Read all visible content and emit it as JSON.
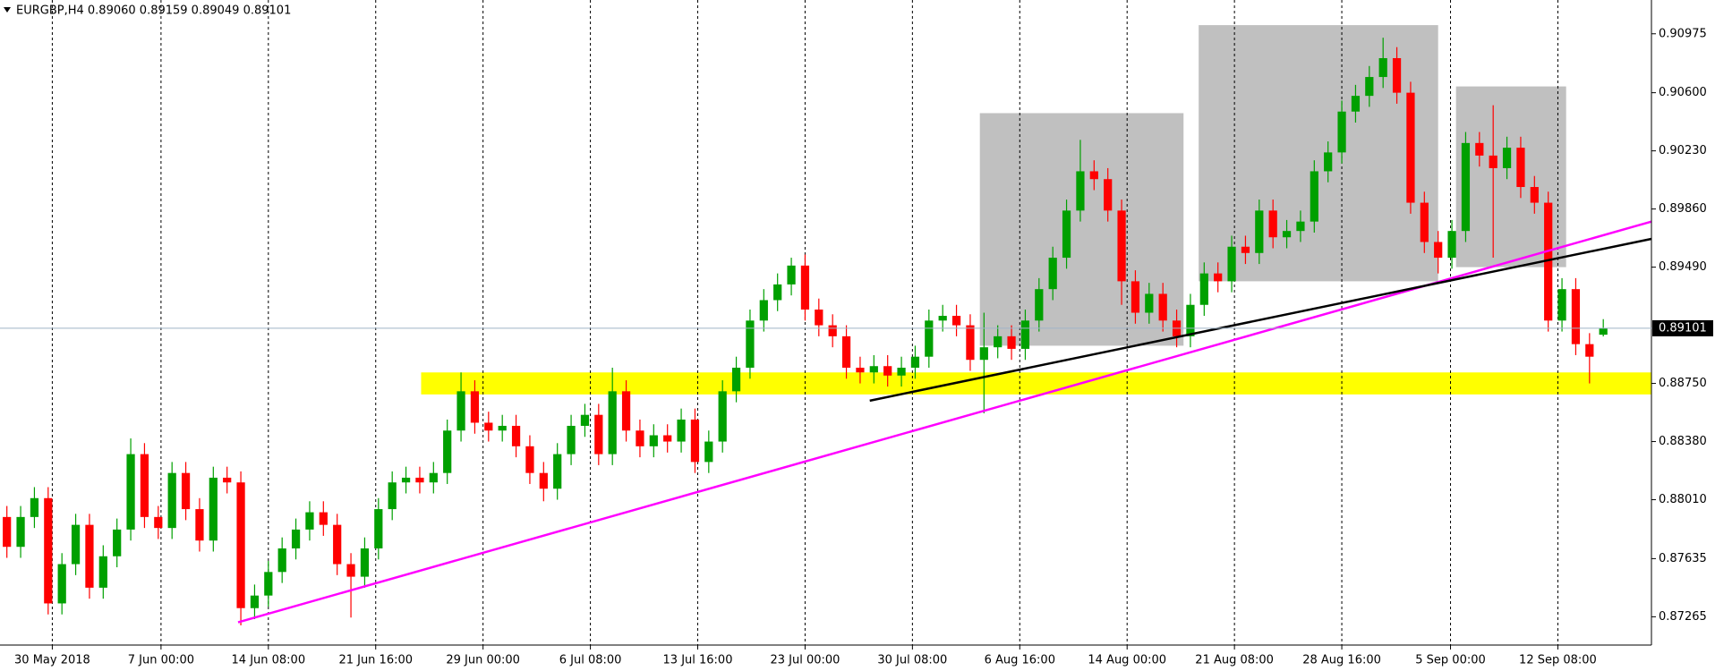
{
  "chart_data": {
    "type": "candlestick",
    "title": "EURGBP,H4  0.89060 0.89159 0.89049 0.89101",
    "up_color": "#00a000",
    "down_color": "#ff0000",
    "grid": true,
    "current_price": 0.89101,
    "xlim": [
      0,
      120
    ],
    "xticks": [
      {
        "value": 3.8,
        "label": "30 May 2018"
      },
      {
        "value": 11.7,
        "label": "7 Jun 00:00"
      },
      {
        "value": 19.5,
        "label": "14 Jun 08:00"
      },
      {
        "value": 27.3,
        "label": "21 Jun 16:00"
      },
      {
        "value": 35.1,
        "label": "29 Jun 00:00"
      },
      {
        "value": 42.9,
        "label": "6 Jul 08:00"
      },
      {
        "value": 50.7,
        "label": "13 Jul 16:00"
      },
      {
        "value": 58.5,
        "label": "23 Jul 00:00"
      },
      {
        "value": 66.3,
        "label": "30 Jul 08:00"
      },
      {
        "value": 74.1,
        "label": "6 Aug 16:00"
      },
      {
        "value": 81.9,
        "label": "14 Aug 00:00"
      },
      {
        "value": 89.7,
        "label": "21 Aug 08:00"
      },
      {
        "value": 97.5,
        "label": "28 Aug 16:00"
      },
      {
        "value": 105.4,
        "label": "5 Sep 00:00"
      },
      {
        "value": 113.2,
        "label": "12 Sep 08:00"
      }
    ],
    "ylim": [
      0.87085,
      0.9119
    ],
    "yticks": [
      0.90975,
      {
        "value": 0.906,
        "label": "0.90600"
      },
      {
        "value": 0.9023,
        "label": "0.90230"
      },
      {
        "value": 0.8986,
        "label": "0.89860"
      },
      {
        "value": 0.8949,
        "label": "0.89490"
      },
      {
        "value": 0.8875,
        "label": "0.88750"
      },
      {
        "value": 0.8838,
        "label": "0.88380"
      },
      {
        "value": 0.8801,
        "label": "0.88010"
      },
      0.87635,
      0.87265
    ],
    "open": [
      0.879,
      0.8771,
      0.879,
      0.8802,
      0.8735,
      0.876,
      0.8785,
      0.8745,
      0.8765,
      0.8782,
      0.883,
      0.879,
      0.8783,
      0.8818,
      0.8795,
      0.8775,
      0.8815,
      0.8812,
      0.8732,
      0.874,
      0.8755,
      0.877,
      0.8782,
      0.8793,
      0.8785,
      0.876,
      0.8752,
      0.877,
      0.8795,
      0.8812,
      0.8815,
      0.8812,
      0.8818,
      0.8845,
      0.887,
      0.885,
      0.8845,
      0.8848,
      0.8835,
      0.8818,
      0.8808,
      0.883,
      0.8848,
      0.8855,
      0.883,
      0.887,
      0.8845,
      0.8835,
      0.8842,
      0.8838,
      0.8852,
      0.8825,
      0.8838,
      0.887,
      0.8885,
      0.8915,
      0.8928,
      0.8938,
      0.895,
      0.8922,
      0.8912,
      0.8905,
      0.8885,
      0.8882,
      0.8886,
      0.888,
      0.8885,
      0.8892,
      0.8915,
      0.8918,
      0.8912,
      0.889,
      0.8898,
      0.8905,
      0.8897,
      0.8915,
      0.8935,
      0.8955,
      0.8985,
      0.901,
      0.9005,
      0.8985,
      0.894,
      0.892,
      0.8932,
      0.8915,
      0.8905,
      0.8925,
      0.8945,
      0.894,
      0.8962,
      0.8958,
      0.8985,
      0.8968,
      0.8972,
      0.8978,
      0.901,
      0.9022,
      0.9048,
      0.9058,
      0.907,
      0.9082,
      0.906,
      0.899,
      0.8965,
      0.8955,
      0.8972,
      0.9028,
      0.902,
      0.9012,
      0.9025,
      0.9,
      0.899,
      0.8915,
      0.8935,
      0.89,
      0.8906
    ],
    "high": [
      0.8797,
      0.8797,
      0.8809,
      0.8809,
      0.8767,
      0.8792,
      0.8792,
      0.8772,
      0.8789,
      0.884,
      0.8837,
      0.8797,
      0.8825,
      0.8825,
      0.8802,
      0.8822,
      0.8822,
      0.8819,
      0.8747,
      0.8762,
      0.8777,
      0.8789,
      0.88,
      0.88,
      0.8792,
      0.8767,
      0.8777,
      0.8802,
      0.8819,
      0.8822,
      0.8822,
      0.8825,
      0.8852,
      0.8882,
      0.8877,
      0.8857,
      0.8855,
      0.8855,
      0.8842,
      0.8825,
      0.8837,
      0.8855,
      0.8862,
      0.8862,
      0.8885,
      0.8877,
      0.8852,
      0.8849,
      0.8849,
      0.8859,
      0.8859,
      0.8845,
      0.8877,
      0.8892,
      0.8922,
      0.8935,
      0.8945,
      0.8955,
      0.8957,
      0.8929,
      0.8919,
      0.8912,
      0.8892,
      0.8893,
      0.8893,
      0.8892,
      0.8899,
      0.8922,
      0.8925,
      0.8925,
      0.8919,
      0.892,
      0.8912,
      0.8912,
      0.8922,
      0.8942,
      0.8962,
      0.8992,
      0.903,
      0.9017,
      0.9012,
      0.8992,
      0.8947,
      0.8939,
      0.8939,
      0.8922,
      0.8932,
      0.8952,
      0.8952,
      0.8969,
      0.8969,
      0.8992,
      0.8992,
      0.8979,
      0.8985,
      0.9017,
      0.9029,
      0.9055,
      0.9065,
      0.9077,
      0.9095,
      0.9089,
      0.9067,
      0.8997,
      0.8972,
      0.8979,
      0.9035,
      0.9035,
      0.9052,
      0.9032,
      0.9032,
      0.9007,
      0.8997,
      0.8942,
      0.8942,
      0.8907,
      0.89159
    ],
    "low": [
      0.8764,
      0.8764,
      0.8783,
      0.8728,
      0.8728,
      0.8753,
      0.8738,
      0.8738,
      0.8758,
      0.8775,
      0.8783,
      0.8776,
      0.8776,
      0.8788,
      0.8768,
      0.8768,
      0.8805,
      0.8721,
      0.8725,
      0.8733,
      0.8748,
      0.8763,
      0.8775,
      0.8778,
      0.8753,
      0.8726,
      0.8745,
      0.8763,
      0.8788,
      0.8805,
      0.8805,
      0.8805,
      0.8811,
      0.8838,
      0.8843,
      0.8838,
      0.8838,
      0.8828,
      0.8811,
      0.88,
      0.8801,
      0.8823,
      0.8841,
      0.8823,
      0.8823,
      0.8838,
      0.8828,
      0.8828,
      0.8831,
      0.8831,
      0.8818,
      0.8818,
      0.8831,
      0.8863,
      0.8878,
      0.8908,
      0.8921,
      0.8931,
      0.8915,
      0.8905,
      0.8898,
      0.8878,
      0.8875,
      0.8875,
      0.8873,
      0.8873,
      0.8878,
      0.8885,
      0.8908,
      0.8905,
      0.8883,
      0.8856,
      0.8891,
      0.889,
      0.889,
      0.8908,
      0.8928,
      0.8948,
      0.8978,
      0.8998,
      0.8978,
      0.8925,
      0.8913,
      0.8913,
      0.8908,
      0.8898,
      0.8898,
      0.8918,
      0.8933,
      0.8933,
      0.8951,
      0.8951,
      0.8961,
      0.8961,
      0.8965,
      0.8971,
      0.9003,
      0.9015,
      0.9041,
      0.9051,
      0.9063,
      0.9053,
      0.8983,
      0.8958,
      0.8945,
      0.8948,
      0.8965,
      0.9013,
      0.8955,
      0.9005,
      0.8993,
      0.8983,
      0.8908,
      0.8908,
      0.8893,
      0.8875,
      0.89049
    ],
    "close": [
      0.8771,
      0.879,
      0.8802,
      0.8735,
      0.876,
      0.8785,
      0.8745,
      0.8765,
      0.8782,
      0.883,
      0.879,
      0.8783,
      0.8818,
      0.8795,
      0.8775,
      0.8815,
      0.8812,
      0.8732,
      0.874,
      0.8755,
      0.877,
      0.8782,
      0.8793,
      0.8785,
      0.876,
      0.8752,
      0.877,
      0.8795,
      0.8812,
      0.8815,
      0.8812,
      0.8818,
      0.8845,
      0.887,
      0.885,
      0.8845,
      0.8848,
      0.8835,
      0.8818,
      0.8808,
      0.883,
      0.8848,
      0.8855,
      0.883,
      0.887,
      0.8845,
      0.8835,
      0.8842,
      0.8838,
      0.8852,
      0.8825,
      0.8838,
      0.887,
      0.8885,
      0.8915,
      0.8928,
      0.8938,
      0.895,
      0.8922,
      0.8912,
      0.8905,
      0.8885,
      0.8882,
      0.8886,
      0.888,
      0.8885,
      0.8892,
      0.8915,
      0.8918,
      0.8912,
      0.889,
      0.8898,
      0.8905,
      0.8897,
      0.8915,
      0.8935,
      0.8955,
      0.8985,
      0.901,
      0.9005,
      0.8985,
      0.894,
      0.892,
      0.8932,
      0.8915,
      0.8905,
      0.8925,
      0.8945,
      0.894,
      0.8962,
      0.8958,
      0.8985,
      0.8968,
      0.8972,
      0.8978,
      0.901,
      0.9022,
      0.9048,
      0.9058,
      0.907,
      0.9082,
      0.906,
      0.899,
      0.8965,
      0.8955,
      0.8972,
      0.9028,
      0.902,
      0.9012,
      0.9025,
      0.9,
      0.899,
      0.8915,
      0.8935,
      0.89,
      0.8892,
      0.89101
    ],
    "zones": [
      {
        "color": "#ffff00",
        "x": [
          30.6,
          120
        ],
        "y": [
          0.8882,
          0.8868
        ]
      },
      {
        "color": "#c0c0c0",
        "x": [
          71.2,
          86.0
        ],
        "y": [
          0.9047,
          0.8899
        ]
      },
      {
        "color": "#c0c0c0",
        "x": [
          87.1,
          104.5
        ],
        "y": [
          0.9103,
          0.894
        ]
      },
      {
        "color": "#c0c0c0",
        "x": [
          105.8,
          113.8
        ],
        "y": [
          0.9064,
          0.8949
        ]
      }
    ],
    "trendlines": [
      {
        "color": "#ff00ff",
        "x": [
          17.3,
          120
        ],
        "y": [
          0.8723,
          0.8978
        ]
      },
      {
        "color": "#000000",
        "x": [
          63.2,
          120
        ],
        "y": [
          0.8864,
          0.8967
        ]
      }
    ]
  }
}
